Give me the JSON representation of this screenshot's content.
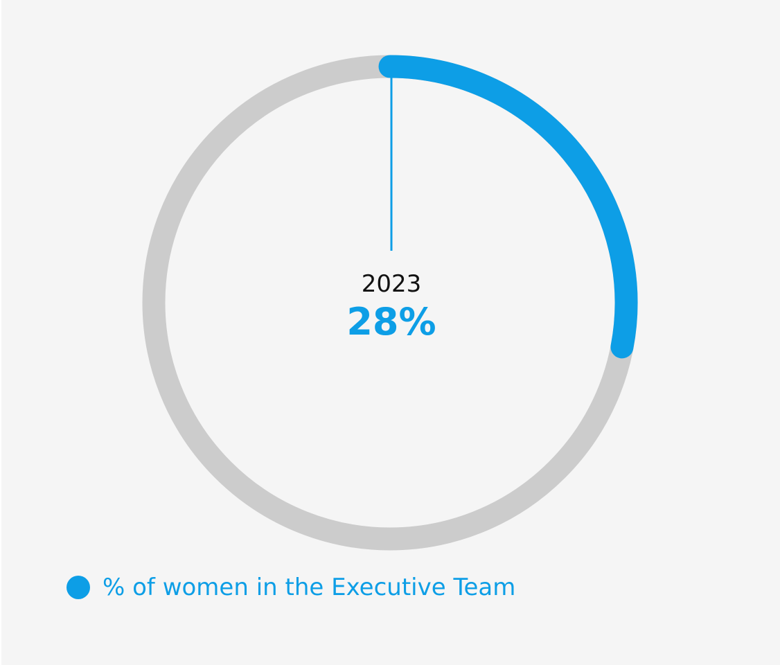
{
  "colors": {
    "background": "#f5f5f5",
    "track": "#cccccc",
    "accent": "#0d9ee6",
    "year_text": "#111111"
  },
  "chart_data": {
    "type": "pie",
    "subtype": "radial-progress",
    "year": "2023",
    "value_label": "28%",
    "value": 28,
    "max": 100,
    "legend": [
      {
        "label": "% of women in the Executive Team",
        "color": "#0d9ee6"
      }
    ]
  }
}
